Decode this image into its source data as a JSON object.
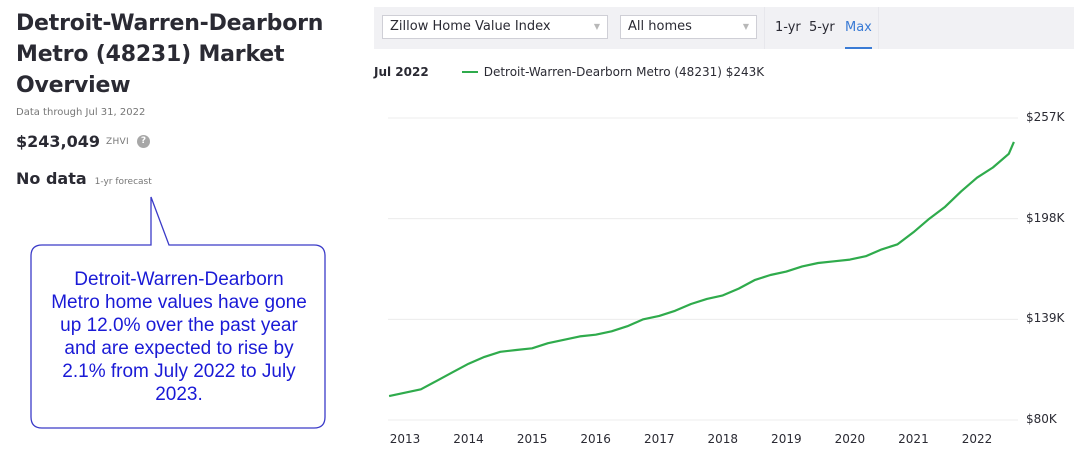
{
  "overview": {
    "title_lines": [
      "Detroit-Warren-Dearborn",
      "Metro (48231) Market",
      "Overview"
    ],
    "data_through": "Data through Jul 31, 2022",
    "zhvi_value": "$243,049",
    "zhvi_label": "ZHVI",
    "help_icon": "?",
    "forecast_value": "No data",
    "forecast_label": "1-yr forecast"
  },
  "callout": {
    "lines": [
      "Detroit-Warren-Dearborn",
      "Metro home values have gone",
      "up 12.0% over the past year",
      "and are expected to rise by",
      "2.1% from July 2022 to July",
      "2023."
    ],
    "border_color": "#3b3bc8",
    "text_color": "#1a1ad6"
  },
  "toolbar": {
    "metric_select": "Zillow Home Value Index",
    "home_type_select": "All homes",
    "ranges": [
      "1-yr",
      "5-yr",
      "Max"
    ],
    "active_range": "Max",
    "caret_icon": "▼"
  },
  "legend": {
    "date": "Jul 2022",
    "series_label": "Detroit-Warren-Dearborn Metro (48231) $243K",
    "color": "#2fab4c"
  },
  "chart_data": {
    "type": "line",
    "title": "Zillow Home Value Index — Detroit-Warren-Dearborn Metro (48231)",
    "xlabel": "",
    "ylabel": "",
    "y_tick_labels": [
      "$257K",
      "$198K",
      "$139K",
      "$80K"
    ],
    "y_ticks": [
      257,
      198,
      139,
      80
    ],
    "ylim": [
      80,
      257
    ],
    "x_tick_labels": [
      "2013",
      "2014",
      "2015",
      "2016",
      "2017",
      "2018",
      "2019",
      "2020",
      "2021",
      "2022"
    ],
    "grid": "horizontal",
    "legend_position": "top-left",
    "series": [
      {
        "name": "Detroit-Warren-Dearborn Metro (48231)",
        "color": "#2fab4c",
        "x": [
          2012.75,
          2013.0,
          2013.25,
          2013.5,
          2013.75,
          2014.0,
          2014.25,
          2014.5,
          2014.75,
          2015.0,
          2015.25,
          2015.5,
          2015.75,
          2016.0,
          2016.25,
          2016.5,
          2016.75,
          2017.0,
          2017.25,
          2017.5,
          2017.75,
          2018.0,
          2018.25,
          2018.5,
          2018.75,
          2019.0,
          2019.25,
          2019.5,
          2019.75,
          2020.0,
          2020.25,
          2020.5,
          2020.75,
          2021.0,
          2021.25,
          2021.5,
          2021.75,
          2022.0,
          2022.25,
          2022.5,
          2022.58
        ],
        "values": [
          94,
          96,
          98,
          103,
          108,
          113,
          117,
          120,
          121,
          122,
          125,
          127,
          129,
          130,
          132,
          135,
          139,
          141,
          144,
          148,
          151,
          153,
          157,
          162,
          165,
          167,
          170,
          172,
          173,
          174,
          176,
          180,
          183,
          190,
          198,
          205,
          214,
          222,
          228,
          236,
          243
        ]
      }
    ],
    "latest": {
      "date": "Jul 2022",
      "value": 243049,
      "label": "$243K"
    }
  }
}
